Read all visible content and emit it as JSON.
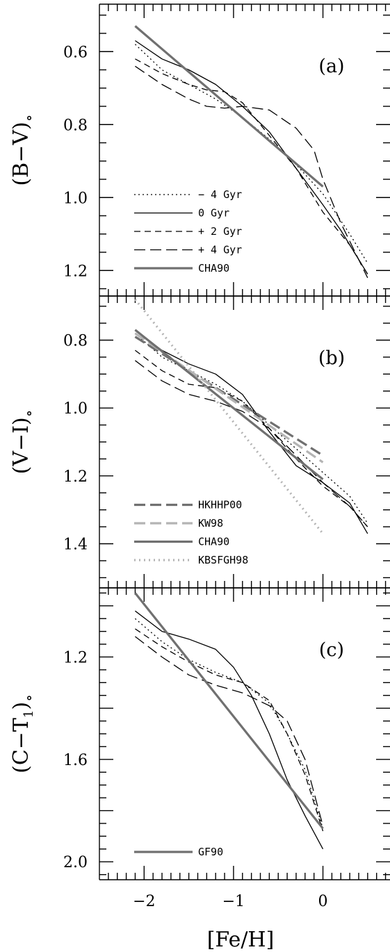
{
  "chart_data": [
    {
      "type": "line",
      "panel_label": "(a)",
      "ylabel_main": "(B−V)",
      "ylabel_sub": "∘",
      "xlim": [
        -2.5,
        0.75
      ],
      "ylim": [
        1.27,
        0.47
      ],
      "y_inverted": true,
      "yticks": [
        0.6,
        0.8,
        1.0,
        1.2
      ],
      "ytick_labels": [
        "0.6",
        "0.8",
        "1.0",
        "1.2"
      ],
      "series": [
        {
          "name": "− 4 Gyr",
          "color": "#000000",
          "width": 1.3,
          "dash": "2,4",
          "x": [
            -2.1,
            -1.8,
            -1.5,
            -1.2,
            -0.9,
            -0.6,
            -0.3,
            0.0,
            0.3,
            0.5
          ],
          "y": [
            0.58,
            0.65,
            0.69,
            0.73,
            0.78,
            0.84,
            0.91,
            0.99,
            1.1,
            1.18
          ]
        },
        {
          "name": "0 Gyr",
          "color": "#000000",
          "width": 1.3,
          "dash": "",
          "x": [
            -2.1,
            -1.8,
            -1.5,
            -1.2,
            -0.9,
            -0.6,
            -0.3,
            0.0,
            0.2,
            0.35,
            0.5
          ],
          "y": [
            0.57,
            0.62,
            0.65,
            0.69,
            0.75,
            0.82,
            0.92,
            1.02,
            1.09,
            1.15,
            1.21
          ]
        },
        {
          "name": "+ 2 Gyr",
          "color": "#000000",
          "width": 1.3,
          "dash": "9,6",
          "x": [
            -2.1,
            -1.8,
            -1.5,
            -1.3,
            -1.1,
            -0.9,
            -0.6,
            -0.3,
            0.0,
            0.3,
            0.5
          ],
          "y": [
            0.62,
            0.66,
            0.69,
            0.705,
            0.71,
            0.74,
            0.83,
            0.92,
            1.04,
            1.13,
            1.21
          ]
        },
        {
          "name": "+ 4 Gyr",
          "color": "#000000",
          "width": 1.3,
          "dash": "16,7",
          "x": [
            -2.1,
            -1.8,
            -1.5,
            -1.3,
            -1.1,
            -0.9,
            -0.6,
            -0.3,
            -0.1,
            0.0,
            0.2,
            0.5
          ],
          "y": [
            0.64,
            0.69,
            0.73,
            0.75,
            0.755,
            0.75,
            0.76,
            0.81,
            0.87,
            0.95,
            1.07,
            1.22
          ]
        },
        {
          "name": "CHA90",
          "color": "#707070",
          "width": 3.2,
          "dash": "",
          "x": [
            -2.1,
            0.0
          ],
          "y": [
            0.53,
            0.97
          ]
        }
      ],
      "legend": {
        "position": "lower-left",
        "entries": [
          "− 4 Gyr",
          "0 Gyr",
          "+ 2 Gyr",
          "+ 4 Gyr",
          "CHA90"
        ]
      }
    },
    {
      "type": "line",
      "panel_label": "(b)",
      "ylabel_main": "(V−I)",
      "ylabel_sub": "∘",
      "xlim": [
        -2.5,
        0.75
      ],
      "ylim": [
        1.53,
        0.67
      ],
      "y_inverted": true,
      "yticks": [
        0.8,
        1.0,
        1.2,
        1.4
      ],
      "ytick_labels": [
        "0.8",
        "1.0",
        "1.2",
        "1.4"
      ],
      "series": [
        {
          "name": "− 4 Gyr",
          "color": "#000000",
          "width": 1.3,
          "dash": "2,4",
          "x": [
            -2.1,
            -1.8,
            -1.5,
            -1.2,
            -0.9,
            -0.6,
            -0.3,
            0.0,
            0.3,
            0.5
          ],
          "y": [
            0.78,
            0.85,
            0.89,
            0.93,
            0.98,
            1.05,
            1.12,
            1.19,
            1.26,
            1.34
          ]
        },
        {
          "name": "0 Gyr",
          "color": "#000000",
          "width": 1.3,
          "dash": "",
          "x": [
            -2.1,
            -1.8,
            -1.5,
            -1.2,
            -0.9,
            -0.6,
            -0.3,
            0.0,
            0.3,
            0.5
          ],
          "y": [
            0.77,
            0.83,
            0.87,
            0.9,
            0.96,
            1.07,
            1.17,
            1.22,
            1.28,
            1.37
          ]
        },
        {
          "name": "+ 2 Gyr",
          "color": "#000000",
          "width": 1.3,
          "dash": "9,6",
          "x": [
            -2.1,
            -1.8,
            -1.5,
            -1.2,
            -0.9,
            -0.6,
            -0.3,
            0.0,
            0.3,
            0.5
          ],
          "y": [
            0.83,
            0.89,
            0.93,
            0.94,
            0.98,
            1.06,
            1.15,
            1.23,
            1.29,
            1.35
          ]
        },
        {
          "name": "+ 4 Gyr",
          "color": "#000000",
          "width": 1.3,
          "dash": "16,7",
          "x": [
            -2.1,
            -1.8,
            -1.5,
            -1.2,
            -0.9,
            -0.6,
            -0.3,
            0.0,
            0.3,
            0.5
          ],
          "y": [
            0.86,
            0.92,
            0.96,
            0.98,
            1.01,
            1.06,
            1.14,
            1.22,
            1.29,
            1.35
          ]
        },
        {
          "name": "HKHHP00",
          "color": "#707070",
          "width": 3.2,
          "dash": "16,7",
          "x": [
            -2.1,
            0.0
          ],
          "y": [
            0.79,
            1.14
          ]
        },
        {
          "name": "KW98",
          "color": "#b4b4b4",
          "width": 3.2,
          "dash": "16,7",
          "x": [
            -2.1,
            0.0
          ],
          "y": [
            0.78,
            1.16
          ]
        },
        {
          "name": "CHA90",
          "color": "#707070",
          "width": 3.2,
          "dash": "",
          "x": [
            -2.1,
            0.0
          ],
          "y": [
            0.77,
            1.21
          ]
        },
        {
          "name": "KBSFGH98",
          "color": "#b4b4b4",
          "width": 3.2,
          "dash": "2,5",
          "x": [
            -2.1,
            0.0
          ],
          "y": [
            0.68,
            1.37
          ]
        }
      ],
      "legend": {
        "position": "lower-left",
        "entries": [
          "HKHHP00",
          "KW98",
          "CHA90",
          "KBSFGH98"
        ]
      }
    },
    {
      "type": "line",
      "panel_label": "(c)",
      "ylabel_main": "(C−T",
      "ylabel_sub_index": "1",
      "ylabel_close": ")",
      "ylabel_sub": "∘",
      "xlim": [
        -2.5,
        0.75
      ],
      "ylim": [
        2.07,
        0.93
      ],
      "y_inverted": true,
      "yticks": [
        1.2,
        1.6,
        2.0
      ],
      "ytick_labels": [
        "1.2",
        "1.6",
        "2.0"
      ],
      "xticks": [
        -2,
        -1,
        0
      ],
      "xtick_labels": [
        "−2",
        "−1",
        "0"
      ],
      "xlabel": "[Fe/H]",
      "series": [
        {
          "name": "− 4 Gyr",
          "color": "#000000",
          "width": 1.3,
          "dash": "2,4",
          "x": [
            -2.1,
            -1.8,
            -1.5,
            -1.2,
            -0.9,
            -0.6,
            -0.4,
            -0.2,
            0.0
          ],
          "y": [
            1.05,
            1.14,
            1.21,
            1.26,
            1.3,
            1.38,
            1.5,
            1.64,
            1.87
          ]
        },
        {
          "name": "0 Gyr",
          "color": "#000000",
          "width": 1.3,
          "dash": "",
          "x": [
            -2.1,
            -1.8,
            -1.5,
            -1.2,
            -1.0,
            -0.8,
            -0.6,
            -0.4,
            -0.2,
            0.0
          ],
          "y": [
            1.02,
            1.1,
            1.13,
            1.17,
            1.24,
            1.35,
            1.5,
            1.68,
            1.82,
            1.95
          ]
        },
        {
          "name": "+ 2 Gyr",
          "color": "#000000",
          "width": 1.3,
          "dash": "9,6",
          "x": [
            -2.1,
            -1.8,
            -1.5,
            -1.2,
            -0.9,
            -0.6,
            -0.4,
            -0.2,
            0.0
          ],
          "y": [
            1.09,
            1.16,
            1.22,
            1.27,
            1.3,
            1.37,
            1.5,
            1.66,
            1.88
          ]
        },
        {
          "name": "+ 4 Gyr",
          "color": "#000000",
          "width": 1.3,
          "dash": "16,7",
          "x": [
            -2.1,
            -1.8,
            -1.5,
            -1.2,
            -0.9,
            -0.6,
            -0.4,
            -0.2,
            0.0
          ],
          "y": [
            1.12,
            1.2,
            1.27,
            1.31,
            1.34,
            1.39,
            1.45,
            1.6,
            1.86
          ]
        },
        {
          "name": "GF90",
          "color": "#707070",
          "width": 3.2,
          "dash": "",
          "x": [
            -2.1,
            0.0
          ],
          "y": [
            0.95,
            1.87
          ]
        }
      ],
      "legend": {
        "position": "lower-left",
        "entries": [
          "GF90"
        ]
      }
    }
  ]
}
